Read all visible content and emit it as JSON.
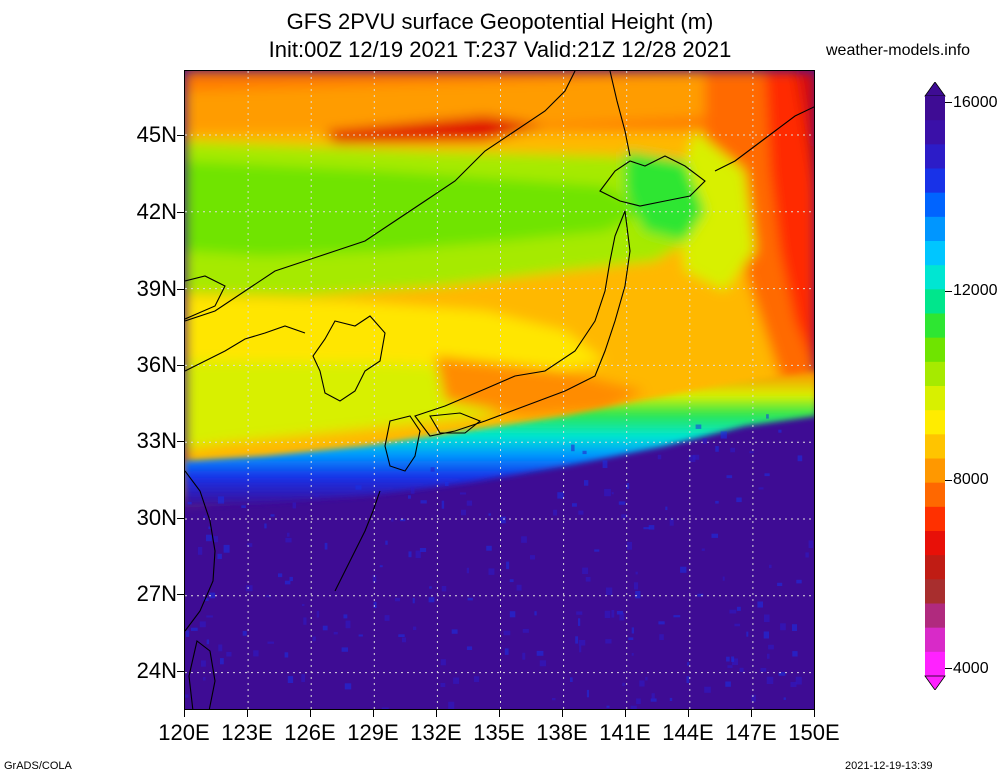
{
  "header": {
    "title_line1": "GFS 2PVU surface Geopotential Height (m)",
    "title_line2": "Init:00Z 12/19 2021 T:237 Valid:21Z 12/28 2021",
    "site": "weather-models.info"
  },
  "map": {
    "lat_labels": [
      "45N",
      "42N",
      "39N",
      "36N",
      "33N",
      "30N",
      "27N",
      "24N"
    ],
    "lon_labels": [
      "120E",
      "123E",
      "126E",
      "129E",
      "132E",
      "135E",
      "138E",
      "141E",
      "144E",
      "147E",
      "150E"
    ],
    "lon_range": [
      120,
      150
    ],
    "lat_range": [
      22.5,
      47.5
    ],
    "gridlines": "dotted"
  },
  "colorbar": {
    "labels": [
      "16000",
      "12000",
      "8000",
      "4000"
    ],
    "min": 4000,
    "max": 16000,
    "colors": [
      "#ff22ff",
      "#d82ac8",
      "#b02a7e",
      "#a82e2e",
      "#c01c14",
      "#e81008",
      "#ff3000",
      "#ff6800",
      "#ff9800",
      "#ffc400",
      "#ffec00",
      "#d8f000",
      "#a6ea00",
      "#6fe400",
      "#2ee632",
      "#00e68c",
      "#00e6d2",
      "#00c6ff",
      "#0096ff",
      "#0064ff",
      "#1832e8",
      "#2c1cc8",
      "#3a10a8",
      "#3e0c94"
    ]
  },
  "footer": {
    "left": "GrADS/COLA",
    "right": "2021-12-19-13:39"
  }
}
